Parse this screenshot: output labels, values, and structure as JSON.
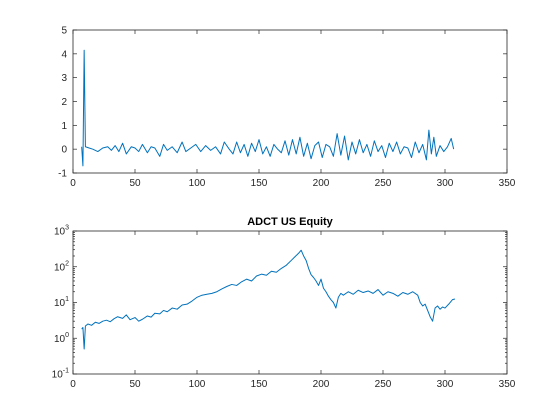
{
  "chart_data": [
    {
      "type": "line",
      "title": "",
      "xlabel": "",
      "ylabel": "",
      "xlim": [
        0,
        350
      ],
      "ylim": [
        -1,
        5
      ],
      "xticks": [
        0,
        50,
        100,
        150,
        200,
        250,
        300,
        350
      ],
      "xtick_labels": [
        "0",
        "50",
        "100",
        "150",
        "200",
        "250",
        "300",
        "350"
      ],
      "yticks": [
        -1,
        0,
        1,
        2,
        3,
        4,
        5
      ],
      "ytick_labels": [
        "-1",
        "0",
        "1",
        "2",
        "3",
        "4",
        "5"
      ],
      "yscale": "linear",
      "grid": false,
      "line_color": "#0072BD",
      "series": [
        {
          "x": [
            7,
            8,
            9,
            10,
            13,
            16,
            20,
            24,
            28,
            31,
            34,
            37,
            40,
            43,
            47,
            50,
            53,
            56,
            60,
            63,
            66,
            70,
            73,
            76,
            80,
            84,
            88,
            91,
            95,
            99,
            103,
            107,
            111,
            115,
            119,
            122,
            126,
            129,
            132,
            135,
            138,
            141,
            144,
            147,
            150,
            153,
            156,
            159,
            162,
            165,
            168,
            171,
            174,
            177,
            180,
            183,
            186,
            189,
            192,
            195,
            198,
            201,
            204,
            207,
            210,
            213,
            216,
            219,
            222,
            225,
            228,
            231,
            234,
            237,
            240,
            243,
            246,
            249,
            252,
            255,
            258,
            261,
            264,
            267,
            270,
            273,
            276,
            279,
            282,
            285,
            287,
            289,
            291,
            293,
            296,
            299,
            302,
            305,
            307
          ],
          "y": [
            0.1,
            -0.7,
            4.15,
            0.1,
            0.05,
            0.0,
            -0.1,
            0.05,
            0.1,
            -0.05,
            0.15,
            -0.1,
            0.25,
            -0.2,
            0.1,
            0.05,
            -0.1,
            0.2,
            -0.15,
            0.1,
            0.05,
            -0.3,
            0.2,
            -0.05,
            0.1,
            -0.15,
            0.3,
            -0.1,
            0.05,
            0.2,
            -0.1,
            0.15,
            -0.05,
            0.1,
            -0.2,
            0.3,
            0.0,
            -0.2,
            0.3,
            -0.15,
            0.2,
            -0.3,
            0.25,
            -0.1,
            0.4,
            -0.2,
            0.1,
            -0.3,
            0.2,
            0.0,
            -0.15,
            0.35,
            -0.25,
            0.4,
            -0.2,
            0.5,
            -0.3,
            0.25,
            -0.4,
            0.15,
            0.3,
            -0.35,
            0.2,
            0.1,
            -0.3,
            0.65,
            -0.25,
            0.55,
            -0.45,
            0.3,
            -0.2,
            0.4,
            -0.15,
            0.2,
            -0.3,
            0.35,
            -0.1,
            0.15,
            -0.35,
            0.25,
            -0.1,
            0.3,
            -0.2,
            0.1,
            0.05,
            -0.35,
            0.3,
            -0.15,
            0.2,
            -0.45,
            0.8,
            -0.2,
            0.5,
            -0.3,
            0.15,
            -0.1,
            0.1,
            0.45,
            0.0
          ]
        }
      ]
    },
    {
      "type": "line",
      "title": "ADCT US Equity",
      "xlabel": "",
      "ylabel": "",
      "xlim": [
        0,
        350
      ],
      "ylim": [
        0.1,
        1000
      ],
      "xticks": [
        0,
        50,
        100,
        150,
        200,
        250,
        300,
        350
      ],
      "xtick_labels": [
        "0",
        "50",
        "100",
        "150",
        "200",
        "250",
        "300",
        "350"
      ],
      "yticks": [
        0.1,
        1,
        10,
        100,
        1000
      ],
      "ytick_base": "10",
      "ytick_exponents": [
        "-1",
        "0",
        "1",
        "2",
        "3"
      ],
      "yscale": "log",
      "grid": false,
      "line_color": "#0072BD",
      "series": [
        {
          "x": [
            7,
            8,
            9,
            10,
            12,
            15,
            18,
            21,
            24,
            27,
            30,
            33,
            36,
            40,
            43,
            46,
            50,
            53,
            56,
            60,
            63,
            66,
            70,
            73,
            76,
            80,
            84,
            88,
            92,
            96,
            100,
            104,
            108,
            112,
            116,
            120,
            124,
            128,
            132,
            136,
            140,
            144,
            148,
            152,
            156,
            160,
            164,
            168,
            172,
            176,
            179,
            182,
            184,
            186,
            188,
            190,
            192,
            194,
            196,
            198,
            200,
            202,
            204,
            206,
            208,
            210,
            212,
            214,
            216,
            218,
            222,
            226,
            230,
            234,
            238,
            242,
            246,
            250,
            254,
            258,
            262,
            266,
            270,
            274,
            278,
            280,
            282,
            284,
            286,
            288,
            290,
            292,
            294,
            296,
            298,
            300,
            303,
            306,
            308
          ],
          "y": [
            1.8,
            2.0,
            0.5,
            2.2,
            2.5,
            2.3,
            2.8,
            2.6,
            3.0,
            3.2,
            2.9,
            3.5,
            4.0,
            3.6,
            4.5,
            3.3,
            3.8,
            3.0,
            3.4,
            4.2,
            3.9,
            5.0,
            4.8,
            6.0,
            5.5,
            7.0,
            6.5,
            8.5,
            9.0,
            11.0,
            14.0,
            16.0,
            17.0,
            18.0,
            20.0,
            24.0,
            28.0,
            32.0,
            30.0,
            38.0,
            45.0,
            40.0,
            55.0,
            62.0,
            58.0,
            75.0,
            70.0,
            90.0,
            110.0,
            150.0,
            190.0,
            240.0,
            290.0,
            200.0,
            150.0,
            90.0,
            60.0,
            50.0,
            40.0,
            30.0,
            45.0,
            25.0,
            20.0,
            15.0,
            12.0,
            10.0,
            7.0,
            14.0,
            18.0,
            16.0,
            20.0,
            17.0,
            22.0,
            19.0,
            21.0,
            18.0,
            23.0,
            16.0,
            20.0,
            18.0,
            15.0,
            19.0,
            17.0,
            20.0,
            16.0,
            10.0,
            8.0,
            9.0,
            6.0,
            4.0,
            3.0,
            7.0,
            8.0,
            6.5,
            7.5,
            7.0,
            9.0,
            12.0,
            12.5
          ]
        }
      ]
    }
  ]
}
